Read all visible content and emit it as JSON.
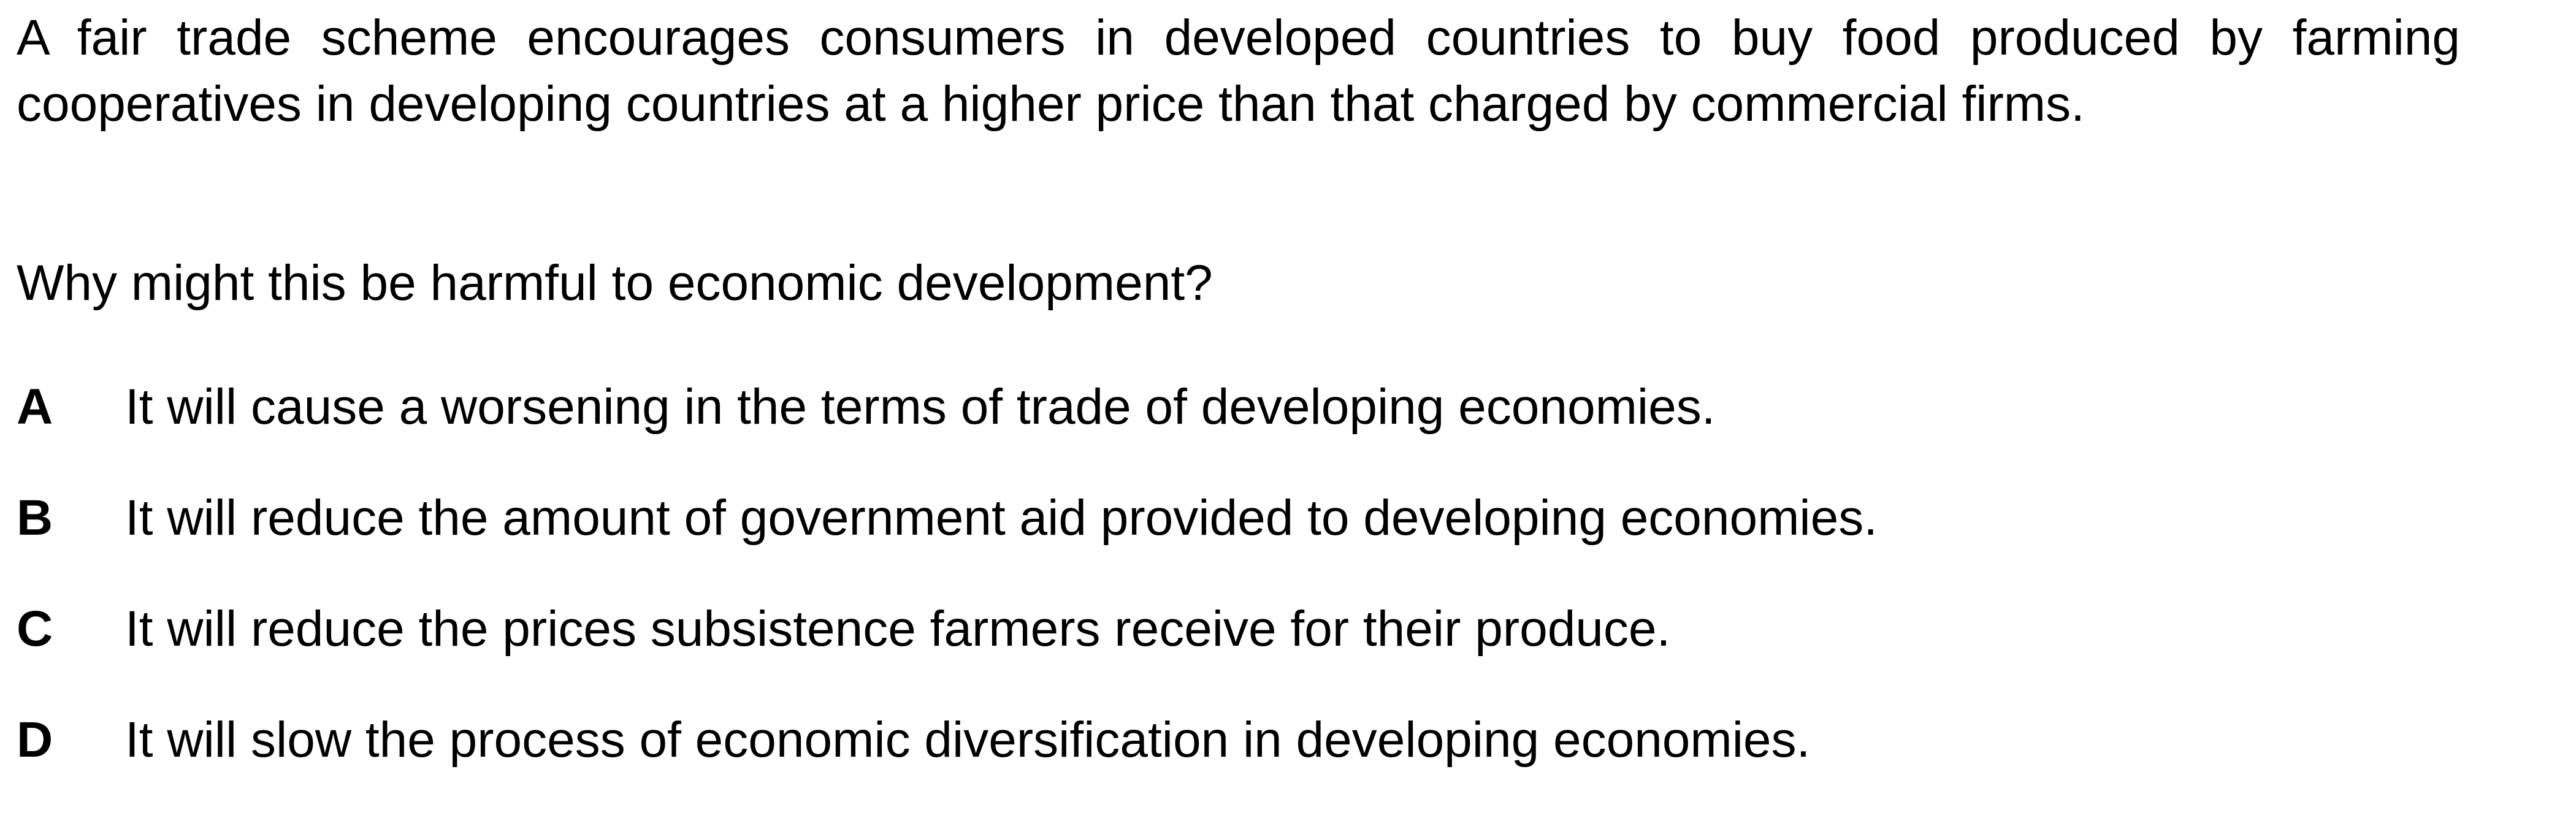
{
  "stem": "A fair trade scheme encourages consumers in developed countries to buy food produced by farming cooperatives in developing countries at a higher price than that charged by commercial firms.",
  "question": "Why might this be harmful to economic development?",
  "options": [
    {
      "letter": "A",
      "text": "It will cause a worsening in the terms of trade of developing economies."
    },
    {
      "letter": "B",
      "text": "It will reduce the amount of government aid provided to developing economies."
    },
    {
      "letter": "C",
      "text": "It will reduce the prices subsistence farmers receive for their produce."
    },
    {
      "letter": "D",
      "text": "It will slow the process of economic diversification in developing economies."
    }
  ]
}
